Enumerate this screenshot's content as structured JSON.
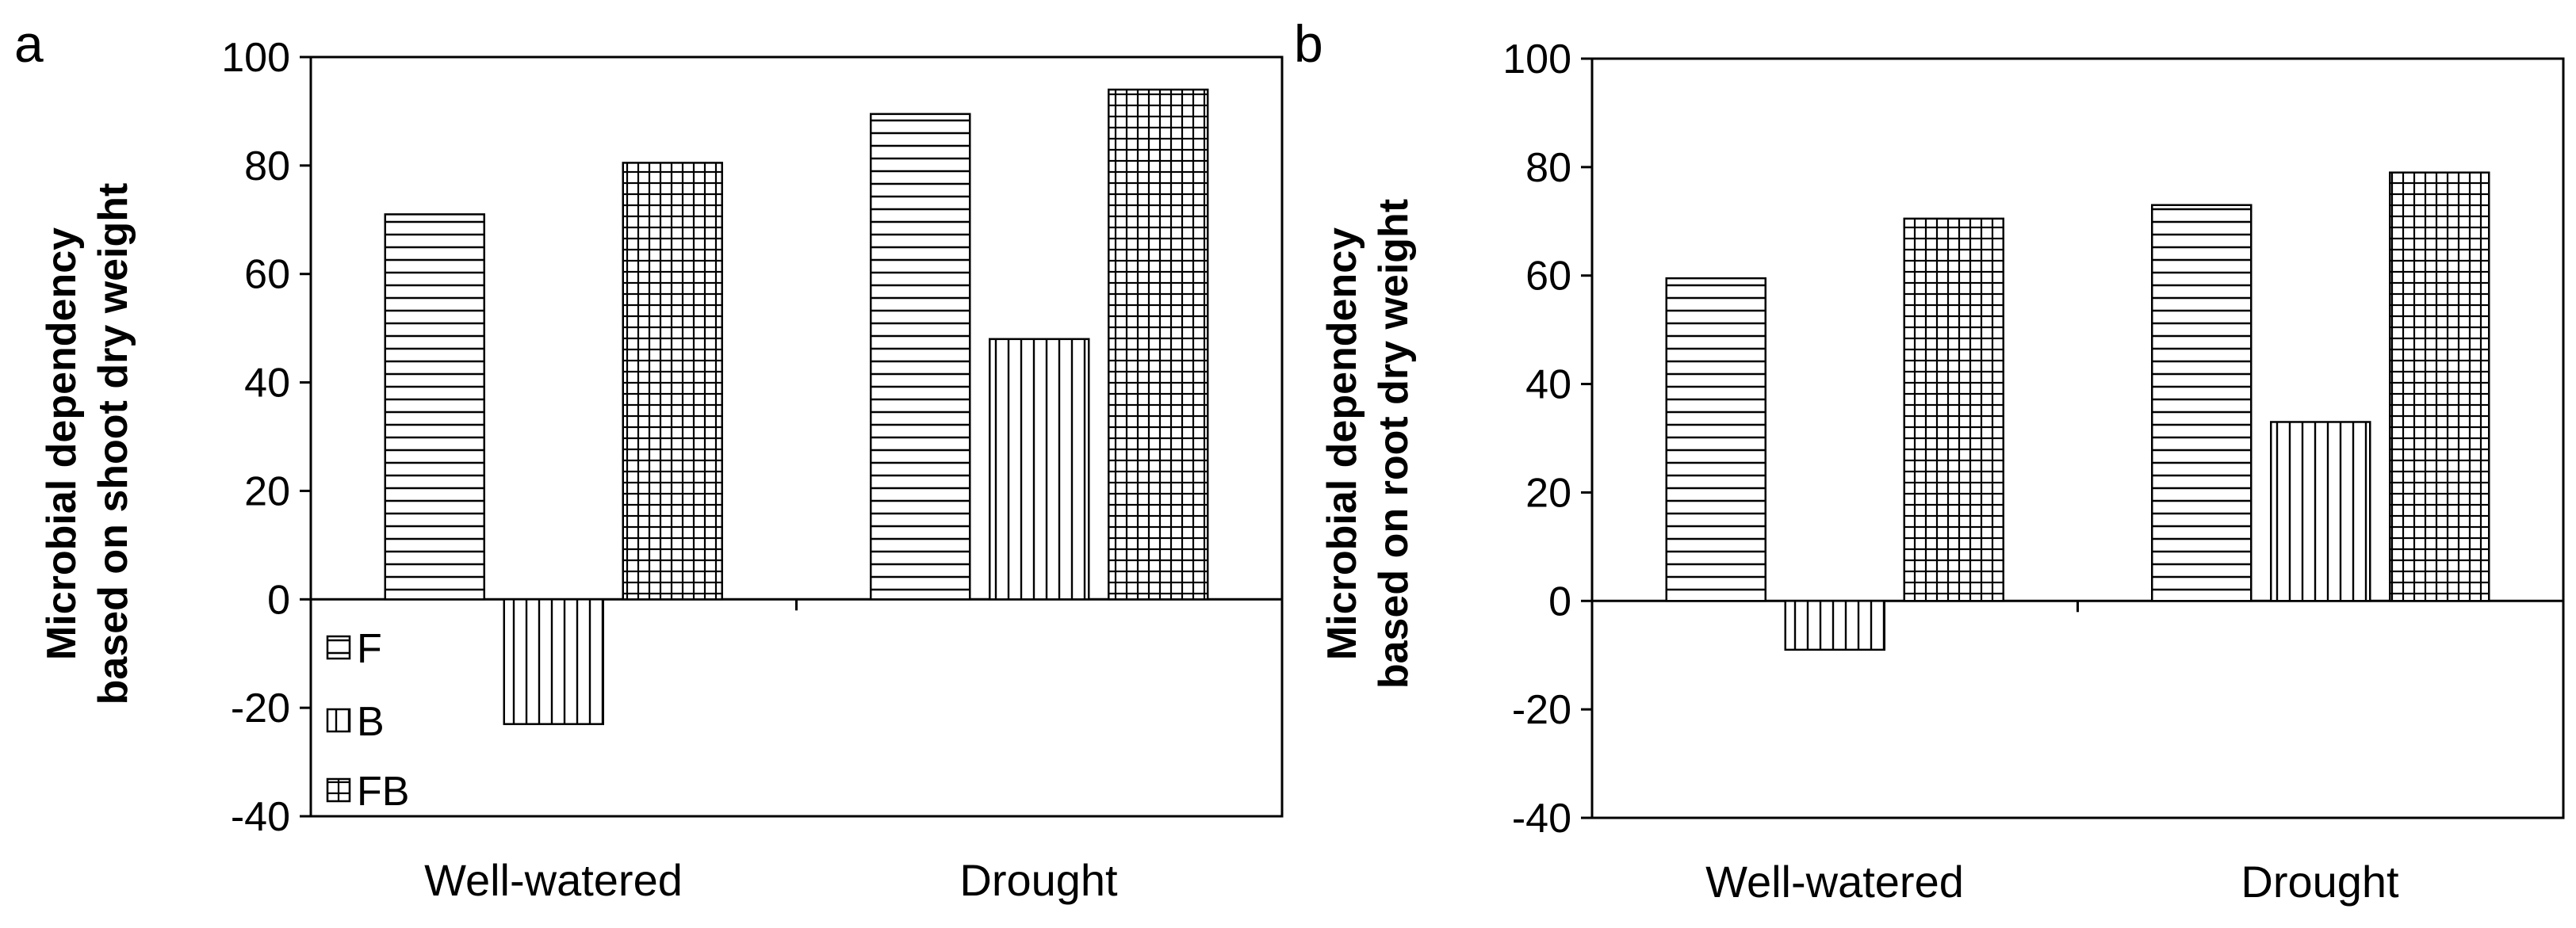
{
  "chart_data": [
    {
      "panel": "a",
      "type": "bar",
      "categories": [
        "Well-watered",
        "Drought"
      ],
      "series": [
        {
          "name": "F",
          "pattern": "horizontal",
          "values": [
            71,
            89.5
          ]
        },
        {
          "name": "B",
          "pattern": "vertical",
          "values": [
            -23,
            48
          ]
        },
        {
          "name": "FB",
          "pattern": "grid",
          "values": [
            80.5,
            94
          ]
        }
      ],
      "ylabel_line1": "Microbial dependency",
      "ylabel_line2": "based on shoot dry weight",
      "ylim": [
        -40,
        100
      ],
      "yticks": [
        "-40",
        "-20",
        "0",
        "20",
        "40",
        "60",
        "80",
        "100"
      ],
      "legend": "inside-bottom-left",
      "grid": false
    },
    {
      "panel": "b",
      "type": "bar",
      "categories": [
        "Well-watered",
        "Drought"
      ],
      "series": [
        {
          "name": "F",
          "pattern": "horizontal",
          "values": [
            59.5,
            73
          ]
        },
        {
          "name": "B",
          "pattern": "vertical",
          "values": [
            -9,
            33
          ]
        },
        {
          "name": "FB",
          "pattern": "grid",
          "values": [
            70.5,
            79
          ]
        }
      ],
      "ylabel_line1": "Microbial dependency",
      "ylabel_line2": "based on root dry weight",
      "ylim": [
        -40,
        100
      ],
      "yticks": [
        "-40",
        "-20",
        "0",
        "20",
        "40",
        "60",
        "80",
        "100"
      ],
      "legend": "none",
      "grid": false
    }
  ],
  "colors": {
    "bar_fill": "#ffffff",
    "stroke": "#000000"
  }
}
